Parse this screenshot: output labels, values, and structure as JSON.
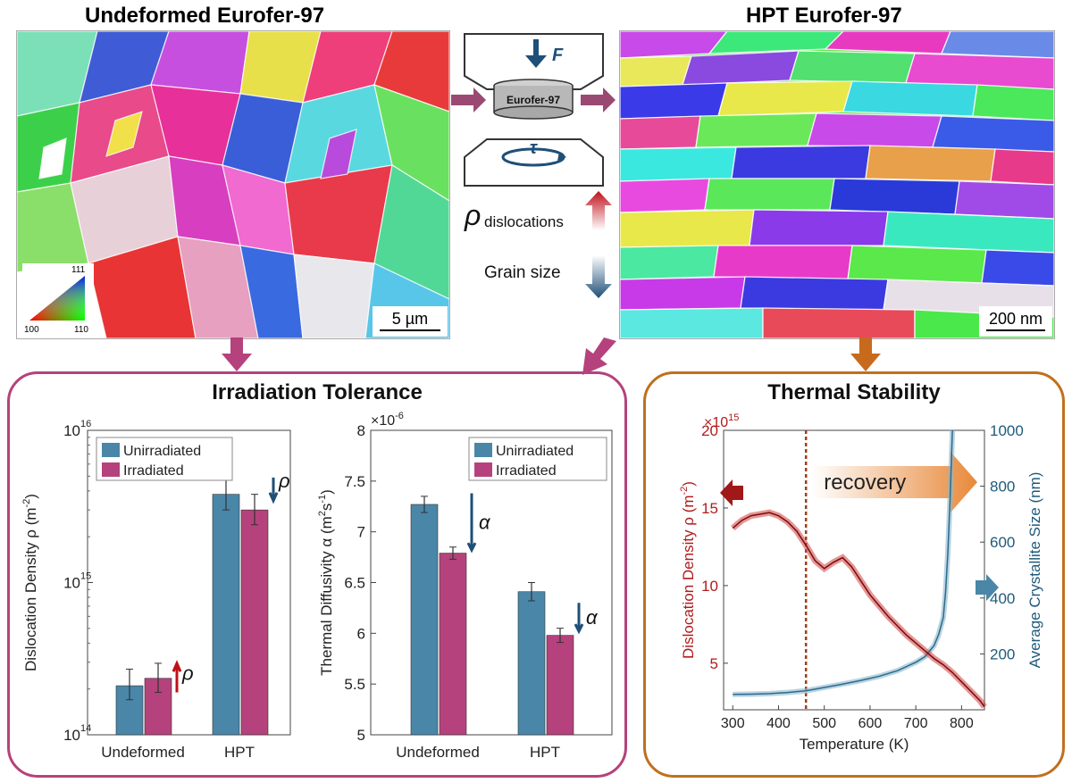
{
  "headings": {
    "undeformed": "Undeformed Eurofer-97",
    "hpt": "HPT Eurofer-97"
  },
  "scalebars": {
    "left": "5 µm",
    "right": "200 nm"
  },
  "ipf_legend": {
    "top": "111",
    "bottom_left": "100",
    "bottom_right": "110"
  },
  "schematic": {
    "force": "F",
    "torque": "τ",
    "sample": "Eurofer-97",
    "rho_symbol": "ρ",
    "rho_sub": "dislocations",
    "grain_size": "Grain size"
  },
  "irradiation": {
    "title": "Irradiation Tolerance",
    "chart_data": [
      {
        "type": "bar",
        "title": "",
        "categories": [
          "Undeformed",
          "HPT"
        ],
        "series": [
          {
            "name": "Unirradiated",
            "color": "#4a86a8",
            "values": [
              210000000000000.0,
              3800000000000000.0
            ],
            "err_low": [
              170000000000000.0,
              3000000000000000.0
            ],
            "err_high": [
              270000000000000.0,
              4800000000000000.0
            ]
          },
          {
            "name": "Irradiated",
            "color": "#b5427c",
            "values": [
              235000000000000.0,
              3000000000000000.0
            ],
            "err_low": [
              190000000000000.0,
              2400000000000000.0
            ],
            "err_high": [
              295000000000000.0,
              3800000000000000.0
            ]
          }
        ],
        "yscale": "log",
        "ylim": [
          100000000000000.0,
          1e+16
        ],
        "yticks": [
          "10",
          "10",
          "10"
        ],
        "ytick_exps": [
          "14",
          "15",
          "16"
        ],
        "ylabel": "Dislocation Density ρ (m",
        "ylabel_sup": "-2",
        "ylabel_end": ")",
        "annotation": "ρ"
      },
      {
        "type": "bar",
        "title": "",
        "categories": [
          "Undeformed",
          "HPT"
        ],
        "series": [
          {
            "name": "Unirradiated",
            "color": "#4a86a8",
            "values": [
              7.27,
              6.41
            ],
            "err": [
              0.08,
              0.09
            ]
          },
          {
            "name": "Irradiated",
            "color": "#b5427c",
            "values": [
              6.79,
              5.98
            ],
            "err": [
              0.06,
              0.07
            ]
          }
        ],
        "ylim": [
          5,
          8
        ],
        "yticks": [
          "5",
          "5.5",
          "6",
          "6.5",
          "7",
          "7.5",
          "8"
        ],
        "multiplier": "×10",
        "multiplier_exp": "-6",
        "ylabel": "Thermal Diffusivity α (m",
        "ylabel_sup1": "2",
        "ylabel_mid": "s",
        "ylabel_sup2": "-1",
        "ylabel_end": ")",
        "annotation": "α"
      }
    ]
  },
  "thermal": {
    "title": "Thermal Stability",
    "recovery_label": "recovery",
    "chart_data": {
      "type": "line",
      "xlabel": "Temperature (K)",
      "xlim": [
        280,
        850
      ],
      "xticks": [
        "300",
        "400",
        "500",
        "600",
        "700",
        "800"
      ],
      "left_axis": {
        "label": "Dislocation Density ρ (m",
        "label_sup": "-2",
        "label_end": ")",
        "multiplier": "×10",
        "multiplier_exp": "15",
        "ylim": [
          2,
          20
        ],
        "yticks": [
          "5",
          "10",
          "15",
          "20"
        ],
        "color": "#b01c1c"
      },
      "right_axis": {
        "label": "Average Crystallite Size (nm)",
        "ylim": [
          0,
          1000
        ],
        "yticks": [
          "200",
          "400",
          "600",
          "800",
          "1000"
        ],
        "color": "#1e5a7a"
      },
      "series": [
        {
          "name": "Dislocation density",
          "axis": "left",
          "x": [
            300,
            320,
            340,
            360,
            380,
            400,
            420,
            440,
            460,
            480,
            500,
            520,
            540,
            560,
            580,
            600,
            620,
            640,
            660,
            680,
            700,
            720,
            740,
            760,
            780,
            800,
            820,
            840,
            850
          ],
          "y": [
            13.7,
            14.2,
            14.5,
            14.6,
            14.7,
            14.5,
            14.1,
            13.5,
            12.6,
            11.6,
            11.1,
            11.5,
            11.8,
            11.2,
            10.3,
            9.4,
            8.7,
            8.0,
            7.4,
            6.8,
            6.3,
            5.8,
            5.3,
            4.9,
            4.4,
            3.8,
            3.2,
            2.6,
            2.2
          ]
        },
        {
          "name": "Crystallite size",
          "axis": "right",
          "x": [
            300,
            340,
            380,
            420,
            460,
            500,
            540,
            580,
            620,
            660,
            700,
            720,
            740,
            750,
            760,
            765,
            770,
            775,
            780
          ],
          "y": [
            55,
            56,
            58,
            62,
            68,
            80,
            92,
            105,
            120,
            140,
            170,
            190,
            230,
            270,
            330,
            420,
            560,
            760,
            1000
          ]
        }
      ],
      "vline_x": 460
    }
  }
}
